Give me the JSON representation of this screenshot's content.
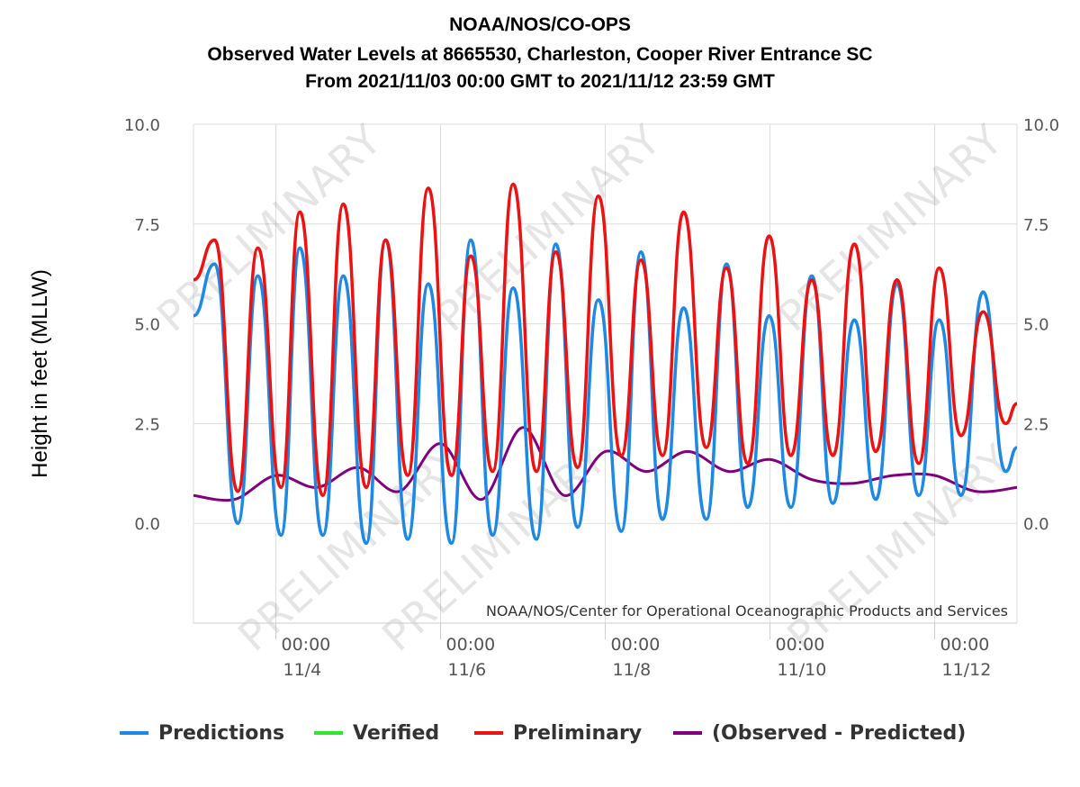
{
  "chart_data": {
    "type": "line",
    "title": [
      "NOAA/NOS/CO-OPS",
      "Observed Water Levels at 8665530, Charleston, Cooper River Entrance SC",
      "From 2021/11/03 00:00 GMT to 2021/11/12 23:59 GMT"
    ],
    "ylabel": "Height in feet (MLLW)",
    "ylim": [
      -2.5,
      10.0
    ],
    "y_ticks": [
      "10.0",
      "7.5",
      "5.0",
      "2.5",
      "0.0"
    ],
    "x_range": [
      "2021-11-03 00:00",
      "2021-11-12 23:59"
    ],
    "x_ticks": [
      {
        "time": "00:00",
        "date": "11/4"
      },
      {
        "time": "00:00",
        "date": "11/6"
      },
      {
        "time": "00:00",
        "date": "11/8"
      },
      {
        "time": "00:00",
        "date": "11/10"
      },
      {
        "time": "00:00",
        "date": "11/12"
      }
    ],
    "grid": true,
    "credit": "NOAA/NOS/Center for Operational Oceanographic Products and Services",
    "watermark": "PRELIMINARY",
    "legend_position": "bottom",
    "series": [
      {
        "name": "Predictions",
        "color": "#1e88e5",
        "x": [
          "2021-11-03 00:00",
          "2021-11-03 06:08",
          "2021-11-03 12:55",
          "2021-11-03 18:45",
          "2021-11-04 01:30",
          "2021-11-04 07:00",
          "2021-11-04 13:40",
          "2021-11-04 19:40",
          "2021-11-05 02:20",
          "2021-11-05 08:00",
          "2021-11-05 14:25",
          "2021-11-05 20:25",
          "2021-11-06 03:10",
          "2021-11-06 08:50",
          "2021-11-06 15:10",
          "2021-11-06 21:10",
          "2021-11-07 03:55",
          "2021-11-07 09:35",
          "2021-11-07 15:55",
          "2021-11-07 22:00",
          "2021-11-08 04:40",
          "2021-11-08 10:25",
          "2021-11-08 16:40",
          "2021-11-08 22:50",
          "2021-11-09 05:25",
          "2021-11-09 11:20",
          "2021-11-09 17:30",
          "2021-11-09 23:45",
          "2021-11-10 06:05",
          "2021-11-10 12:10",
          "2021-11-10 18:20",
          "2021-11-11 00:35",
          "2021-11-11 06:50",
          "2021-11-11 13:00",
          "2021-11-11 19:20",
          "2021-11-12 01:20",
          "2021-11-12 07:40",
          "2021-11-12 14:05",
          "2021-11-12 20:40",
          "2021-11-12 23:59"
        ],
        "y": [
          5.2,
          6.5,
          0.0,
          6.2,
          -0.3,
          6.9,
          -0.3,
          6.2,
          -0.5,
          7.1,
          -0.4,
          6.0,
          -0.5,
          7.1,
          -0.3,
          5.9,
          -0.4,
          7.0,
          -0.1,
          5.6,
          -0.2,
          6.8,
          0.1,
          5.4,
          0.1,
          6.5,
          0.4,
          5.2,
          0.4,
          6.2,
          0.5,
          5.1,
          0.6,
          6.0,
          0.7,
          5.1,
          0.7,
          5.8,
          1.3,
          1.9
        ]
      },
      {
        "name": "Verified",
        "color": "#2ee82e",
        "x": [],
        "y": []
      },
      {
        "name": "Preliminary",
        "color": "#ee1111",
        "x": [
          "2021-11-03 00:00",
          "2021-11-03 06:08",
          "2021-11-03 12:55",
          "2021-11-03 18:45",
          "2021-11-04 01:30",
          "2021-11-04 07:00",
          "2021-11-04 13:40",
          "2021-11-04 19:40",
          "2021-11-05 02:20",
          "2021-11-05 08:00",
          "2021-11-05 14:25",
          "2021-11-05 20:25",
          "2021-11-06 03:10",
          "2021-11-06 08:50",
          "2021-11-06 15:10",
          "2021-11-06 21:10",
          "2021-11-07 03:55",
          "2021-11-07 09:35",
          "2021-11-07 15:55",
          "2021-11-07 22:00",
          "2021-11-08 04:40",
          "2021-11-08 10:25",
          "2021-11-08 16:40",
          "2021-11-08 22:50",
          "2021-11-09 05:25",
          "2021-11-09 11:20",
          "2021-11-09 17:30",
          "2021-11-09 23:45",
          "2021-11-10 06:05",
          "2021-11-10 12:10",
          "2021-11-10 18:20",
          "2021-11-11 00:35",
          "2021-11-11 06:50",
          "2021-11-11 13:00",
          "2021-11-11 19:20",
          "2021-11-12 01:20",
          "2021-11-12 07:40",
          "2021-11-12 14:05",
          "2021-11-12 20:40",
          "2021-11-12 23:59"
        ],
        "y": [
          6.1,
          7.1,
          0.8,
          6.9,
          0.9,
          7.8,
          0.7,
          8.0,
          0.9,
          7.1,
          1.2,
          8.4,
          1.2,
          6.7,
          1.3,
          8.5,
          1.3,
          6.8,
          1.4,
          8.2,
          1.7,
          6.6,
          1.7,
          7.8,
          1.9,
          6.4,
          1.5,
          7.2,
          1.7,
          6.1,
          1.7,
          7.0,
          1.8,
          6.1,
          1.5,
          6.4,
          2.2,
          5.3,
          2.5,
          3.0
        ]
      },
      {
        "name": "(Observed - Predicted)",
        "color": "#800080",
        "x": [
          "2021-11-03 00:00",
          "2021-11-03 12:00",
          "2021-11-04 00:00",
          "2021-11-04 12:00",
          "2021-11-05 00:00",
          "2021-11-05 12:00",
          "2021-11-06 00:00",
          "2021-11-06 12:00",
          "2021-11-07 00:00",
          "2021-11-07 12:00",
          "2021-11-08 00:00",
          "2021-11-08 12:00",
          "2021-11-09 00:00",
          "2021-11-09 12:00",
          "2021-11-10 00:00",
          "2021-11-10 12:00",
          "2021-11-11 00:00",
          "2021-11-11 12:00",
          "2021-11-12 00:00",
          "2021-11-12 12:00",
          "2021-11-12 23:59"
        ],
        "y": [
          0.7,
          0.6,
          1.2,
          0.9,
          1.4,
          0.8,
          2.0,
          0.6,
          2.4,
          0.7,
          1.8,
          1.3,
          1.8,
          1.3,
          1.6,
          1.1,
          1.0,
          1.2,
          1.2,
          0.8,
          0.9
        ]
      }
    ]
  }
}
